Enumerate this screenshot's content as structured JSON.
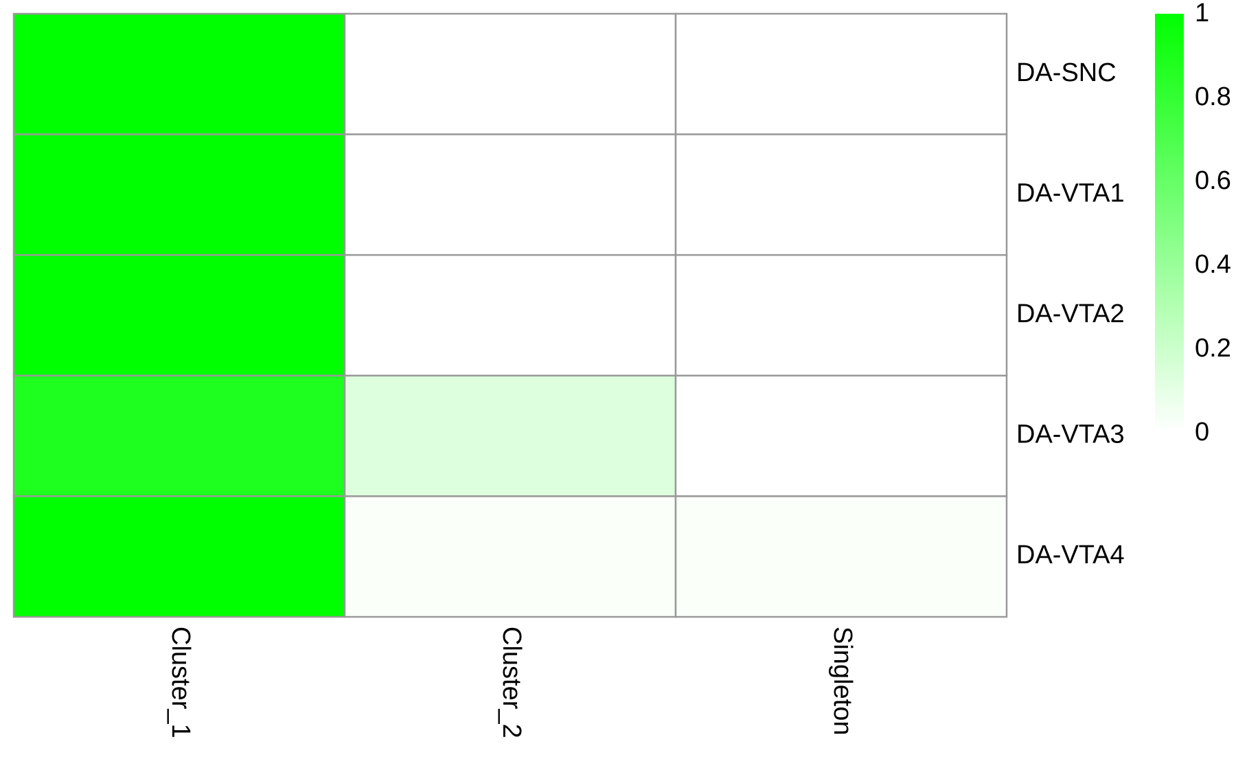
{
  "chart_data": {
    "type": "heatmap",
    "title": "",
    "xlabel": "",
    "ylabel": "",
    "x_categories": [
      "Cluster_1",
      "Cluster_2",
      "Singleton"
    ],
    "y_categories": [
      "DA-SNC",
      "DA-VTA1",
      "DA-VTA2",
      "DA-VTA3",
      "DA-VTA4"
    ],
    "values": [
      [
        1.0,
        0.0,
        0.0
      ],
      [
        1.0,
        0.0,
        0.0
      ],
      [
        1.0,
        0.0,
        0.0
      ],
      [
        0.88,
        0.13,
        0.0
      ],
      [
        1.0,
        0.02,
        0.02
      ]
    ],
    "value_range": [
      0,
      1
    ],
    "colorbar": {
      "ticks": [
        0,
        0.2,
        0.4,
        0.6,
        0.8,
        1
      ],
      "tick_labels": [
        "0",
        "0.2",
        "0.4",
        "0.6",
        "0.8",
        "1"
      ],
      "low_color": "#ffffff",
      "high_color": "#00ff00"
    },
    "grid_color": "#999999",
    "legend_position": "top-right",
    "x_label_rotation": "vertical",
    "y_label_side": "right"
  }
}
